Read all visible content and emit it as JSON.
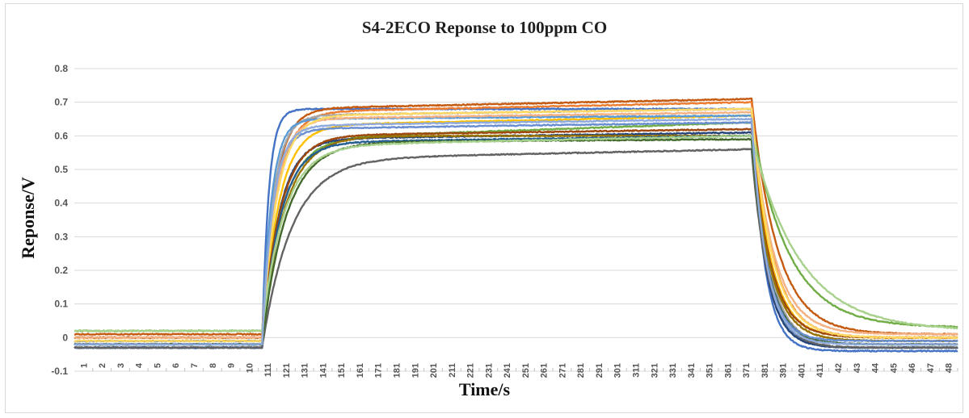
{
  "chart_data": {
    "type": "line",
    "title": "S4-2ECO Reponse to 100ppm CO",
    "xlabel": "Time/s",
    "ylabel": "Reponse/V",
    "ylim": [
      -0.1,
      0.8
    ],
    "yticks": [
      "-0.1",
      "0",
      "0.1",
      "0.2",
      "0.3",
      "0.4",
      "0.5",
      "0.6",
      "0.7",
      "0.8"
    ],
    "ytick_values": [
      -0.1,
      0,
      0.1,
      0.2,
      0.3,
      0.4,
      0.5,
      0.6,
      0.7,
      0.8
    ],
    "xticks": [
      "1",
      "2",
      "3",
      "4",
      "5",
      "6",
      "7",
      "8",
      "9",
      "10",
      "111",
      "121",
      "131",
      "141",
      "151",
      "161",
      "171",
      "181",
      "191",
      "201",
      "211",
      "221",
      "231",
      "241",
      "251",
      "261",
      "271",
      "281",
      "291",
      "301",
      "311",
      "321",
      "331",
      "341",
      "351",
      "361",
      "371",
      "381",
      "391",
      "401",
      "411",
      "42",
      "43",
      "44",
      "45",
      "46",
      "47",
      "48"
    ],
    "grid": "horizontal",
    "legend": "none",
    "x_range_index": [
      0,
      48
    ],
    "rise_index": 10.2,
    "fall_index": 36.8,
    "series": [
      {
        "color": "#4472c4",
        "baseline": -0.03,
        "plateau_start": 0.68,
        "plateau_end": 0.68,
        "final": -0.04,
        "tau_rise": 0.35,
        "tau_fall": 0.7
      },
      {
        "color": "#c55a11",
        "baseline": 0.01,
        "plateau_start": 0.68,
        "plateau_end": 0.71,
        "final": 0.01,
        "tau_rise": 0.7,
        "tau_fall": 1.4
      },
      {
        "color": "#ed7d31",
        "baseline": 0.0,
        "plateau_start": 0.67,
        "plateau_end": 0.7,
        "final": 0.0,
        "tau_rise": 0.8,
        "tau_fall": 1.1
      },
      {
        "color": "#a5a5a5",
        "baseline": -0.02,
        "plateau_start": 0.66,
        "plateau_end": 0.68,
        "final": -0.02,
        "tau_rise": 0.6,
        "tau_fall": 0.9
      },
      {
        "color": "#ffc000",
        "baseline": -0.01,
        "plateau_start": 0.63,
        "plateau_end": 0.66,
        "final": 0.0,
        "tau_rise": 0.9,
        "tau_fall": 1.0
      },
      {
        "color": "#5b9bd5",
        "baseline": -0.02,
        "plateau_start": 0.65,
        "plateau_end": 0.66,
        "final": -0.03,
        "tau_rise": 0.5,
        "tau_fall": 0.8
      },
      {
        "color": "#70ad47",
        "baseline": 0.02,
        "plateau_start": 0.59,
        "plateau_end": 0.64,
        "final": 0.03,
        "tau_rise": 1.1,
        "tau_fall": 2.0
      },
      {
        "color": "#264478",
        "baseline": -0.03,
        "plateau_start": 0.59,
        "plateau_end": 0.61,
        "final": -0.03,
        "tau_rise": 0.9,
        "tau_fall": 0.8
      },
      {
        "color": "#9e480e",
        "baseline": 0.0,
        "plateau_start": 0.6,
        "plateau_end": 0.62,
        "final": 0.0,
        "tau_rise": 1.0,
        "tau_fall": 1.0
      },
      {
        "color": "#636363",
        "baseline": -0.03,
        "plateau_start": 0.53,
        "plateau_end": 0.56,
        "final": -0.03,
        "tau_rise": 1.6,
        "tau_fall": 0.9
      },
      {
        "color": "#997300",
        "baseline": -0.01,
        "plateau_start": 0.6,
        "plateau_end": 0.6,
        "final": -0.01,
        "tau_rise": 1.2,
        "tau_fall": 1.0
      },
      {
        "color": "#255e91",
        "baseline": -0.02,
        "plateau_start": 0.58,
        "plateau_end": 0.6,
        "final": -0.02,
        "tau_rise": 1.0,
        "tau_fall": 0.9
      },
      {
        "color": "#43682b",
        "baseline": -0.02,
        "plateau_start": 0.58,
        "plateau_end": 0.59,
        "final": -0.02,
        "tau_rise": 1.3,
        "tau_fall": 0.9
      },
      {
        "color": "#698ed0",
        "baseline": -0.01,
        "plateau_start": 0.62,
        "plateau_end": 0.64,
        "final": -0.01,
        "tau_rise": 0.6,
        "tau_fall": 0.8
      },
      {
        "color": "#f4b183",
        "baseline": 0.0,
        "plateau_start": 0.65,
        "plateau_end": 0.67,
        "final": 0.01,
        "tau_rise": 0.7,
        "tau_fall": 1.2
      },
      {
        "color": "#ffd966",
        "baseline": -0.01,
        "plateau_start": 0.66,
        "plateau_end": 0.68,
        "final": 0.0,
        "tau_rise": 0.8,
        "tau_fall": 1.1
      },
      {
        "color": "#a9d18e",
        "baseline": 0.02,
        "plateau_start": 0.57,
        "plateau_end": 0.6,
        "final": 0.02,
        "tau_rise": 1.2,
        "tau_fall": 2.6
      },
      {
        "color": "#8faadc",
        "baseline": -0.02,
        "plateau_start": 0.63,
        "plateau_end": 0.65,
        "final": -0.02,
        "tau_rise": 0.6,
        "tau_fall": 0.8
      }
    ]
  }
}
